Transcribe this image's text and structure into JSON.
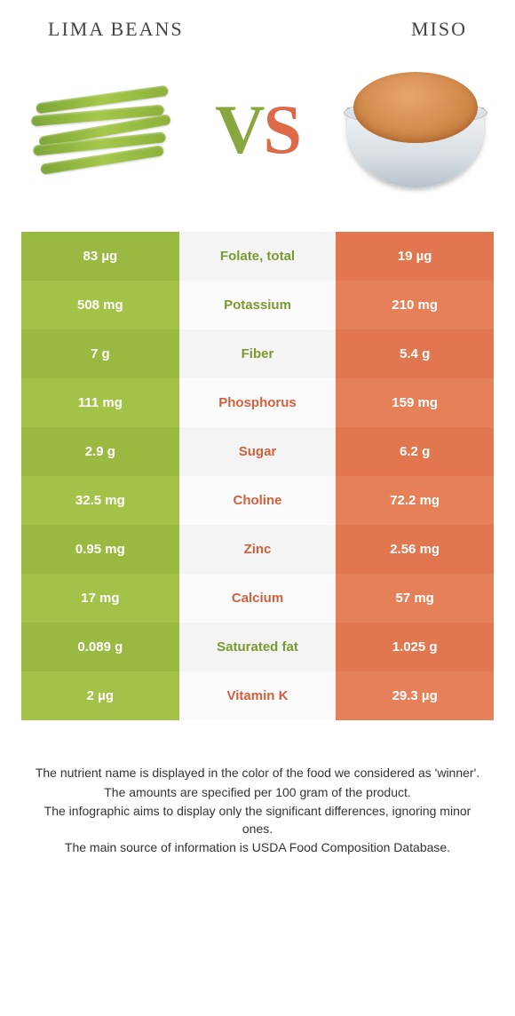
{
  "header": {
    "left_title": "Lima beans",
    "right_title": "Miso",
    "vs_v": "V",
    "vs_s": "S"
  },
  "colors": {
    "green": "#9ab941",
    "green_alt": "#a4c148",
    "orange": "#e2774f",
    "orange_alt": "#e58058",
    "label_green": "#7a9a2e",
    "label_orange": "#d45f3c",
    "mid_bg": "#f4f4f4",
    "mid_bg_alt": "#fbfbfb"
  },
  "table": {
    "rows": [
      {
        "left": "83 µg",
        "label": "Folate, total",
        "right": "19 µg",
        "winner": "left"
      },
      {
        "left": "508 mg",
        "label": "Potassium",
        "right": "210 mg",
        "winner": "left"
      },
      {
        "left": "7 g",
        "label": "Fiber",
        "right": "5.4 g",
        "winner": "left"
      },
      {
        "left": "111 mg",
        "label": "Phosphorus",
        "right": "159 mg",
        "winner": "right"
      },
      {
        "left": "2.9 g",
        "label": "Sugar",
        "right": "6.2 g",
        "winner": "right"
      },
      {
        "left": "32.5 mg",
        "label": "Choline",
        "right": "72.2 mg",
        "winner": "right"
      },
      {
        "left": "0.95 mg",
        "label": "Zinc",
        "right": "2.56 mg",
        "winner": "right"
      },
      {
        "left": "17 mg",
        "label": "Calcium",
        "right": "57 mg",
        "winner": "right"
      },
      {
        "left": "0.089 g",
        "label": "Saturated fat",
        "right": "1.025 g",
        "winner": "left"
      },
      {
        "left": "2 µg",
        "label": "Vitamin K",
        "right": "29.3 µg",
        "winner": "right"
      }
    ]
  },
  "footnotes": {
    "l1": "The nutrient name is displayed in the color of the food we considered as 'winner'.",
    "l2": "The amounts are specified per 100 gram of the product.",
    "l3": "The infographic aims to display only the significant differences, ignoring minor ones.",
    "l4": "The main source of information is USDA Food Composition Database."
  }
}
